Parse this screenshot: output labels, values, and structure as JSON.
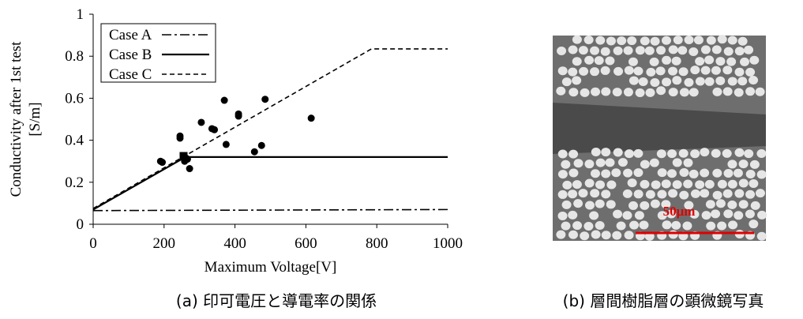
{
  "chart_data": {
    "type": "scatter",
    "xlabel": "Maximum Voltage[V]",
    "ylabel": [
      "Conductivity after 1st test",
      "[S/m]"
    ],
    "xlim": [
      0,
      1000
    ],
    "xticks": [
      0,
      200,
      400,
      600,
      800,
      1000
    ],
    "ylim": [
      0,
      1
    ],
    "yticks": [
      0,
      0.2,
      0.4,
      0.6,
      0.8,
      1
    ],
    "series": [
      {
        "name": "Case A",
        "style": "dashdot",
        "color": "#000000",
        "x": [
          0,
          1000
        ],
        "values": [
          0.065,
          0.07
        ]
      },
      {
        "name": "Case B",
        "style": "solid",
        "color": "#000000",
        "x": [
          0,
          260,
          1000
        ],
        "values": [
          0.07,
          0.32,
          0.32
        ]
      },
      {
        "name": "Case C",
        "style": "dashed",
        "color": "#000000",
        "x": [
          0,
          785,
          1000
        ],
        "values": [
          0.075,
          0.835,
          0.835
        ]
      }
    ],
    "points": {
      "color": "#000000",
      "x": [
        190,
        195,
        245,
        245,
        258,
        262,
        266,
        272,
        305,
        335,
        342,
        370,
        375,
        410,
        410,
        455,
        475,
        485,
        615
      ],
      "values": [
        0.3,
        0.295,
        0.42,
        0.41,
        0.3,
        0.315,
        0.31,
        0.265,
        0.485,
        0.455,
        0.45,
        0.59,
        0.38,
        0.525,
        0.515,
        0.345,
        0.375,
        0.595,
        0.505
      ]
    },
    "highlight": {
      "color": "#000000",
      "x": [
        255
      ],
      "values": [
        0.325
      ]
    }
  },
  "micrograph": {
    "scale_label": "50μm"
  },
  "captions": [
    "(a)  印可電圧と導電率の関係",
    "(b)  層間樹脂層の顕微鏡写真"
  ]
}
